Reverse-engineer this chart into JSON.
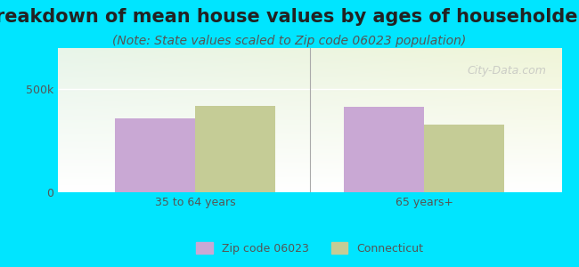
{
  "title": "Breakdown of mean house values by ages of householders",
  "subtitle": "(Note: State values scaled to Zip code 06023 population)",
  "categories": [
    "35 to 64 years",
    "65 years+"
  ],
  "zip_values": [
    360000,
    415000
  ],
  "state_values": [
    420000,
    330000
  ],
  "zip_color": "#c9a8d4",
  "state_color": "#c5cc96",
  "ylim": [
    0,
    700000
  ],
  "yticks": [
    0,
    500000
  ],
  "ytick_labels": [
    "0",
    "500k"
  ],
  "legend_zip": "Zip code 06023",
  "legend_state": "Connecticut",
  "bg_outer": "#00e5ff",
  "watermark": "City-Data.com",
  "title_fontsize": 15,
  "subtitle_fontsize": 10,
  "bar_width": 0.35
}
